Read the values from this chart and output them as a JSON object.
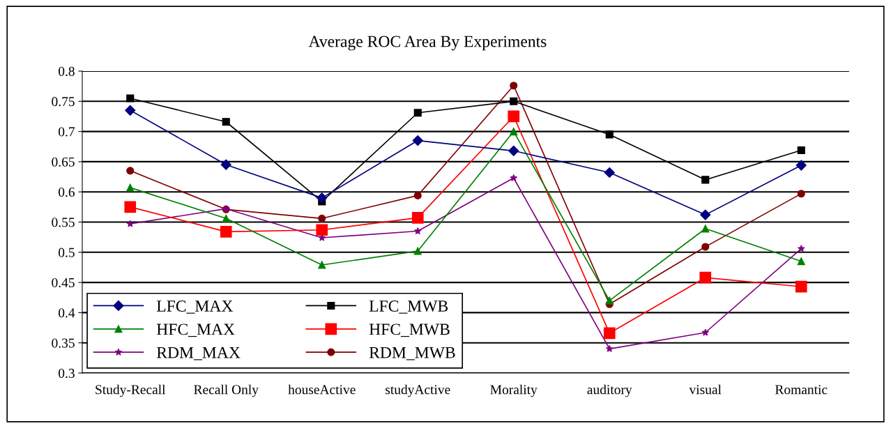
{
  "chart_data": {
    "type": "line",
    "title": "Average ROC Area By Experiments",
    "categories": [
      "Study-Recall",
      "Recall Only",
      "houseActive",
      "studyActive",
      "Morality",
      "auditory",
      "visual",
      "Romantic"
    ],
    "series": [
      {
        "name": "LFC_MAX",
        "color": "#000080",
        "marker": "diamond",
        "values": [
          0.735,
          0.645,
          0.59,
          0.685,
          0.668,
          0.632,
          0.562,
          0.644
        ]
      },
      {
        "name": "LFC_MWB",
        "color": "#000000",
        "marker": "square",
        "values": [
          0.755,
          0.716,
          0.584,
          0.731,
          0.75,
          0.695,
          0.62,
          0.669
        ]
      },
      {
        "name": "HFC_MAX",
        "color": "#008000",
        "marker": "triangle",
        "values": [
          0.607,
          0.556,
          0.479,
          0.502,
          0.7,
          0.42,
          0.539,
          0.485
        ]
      },
      {
        "name": "HFC_MWB",
        "color": "#ff0000",
        "marker": "square",
        "values": [
          0.575,
          0.534,
          0.537,
          0.557,
          0.725,
          0.366,
          0.458,
          0.443
        ]
      },
      {
        "name": "RDM_MAX",
        "color": "#800080",
        "marker": "star",
        "values": [
          0.547,
          0.572,
          0.524,
          0.535,
          0.623,
          0.34,
          0.367,
          0.506
        ]
      },
      {
        "name": "RDM_MWB",
        "color": "#800000",
        "marker": "circle",
        "values": [
          0.635,
          0.571,
          0.556,
          0.594,
          0.776,
          0.414,
          0.509,
          0.597
        ]
      }
    ],
    "ylim": [
      0.3,
      0.8
    ],
    "yticks": [
      0.3,
      0.35,
      0.4,
      0.45,
      0.5,
      0.55,
      0.6,
      0.65,
      0.7,
      0.75,
      0.8
    ],
    "grid": "y",
    "legend": "bottom left",
    "line_style": "solid"
  }
}
